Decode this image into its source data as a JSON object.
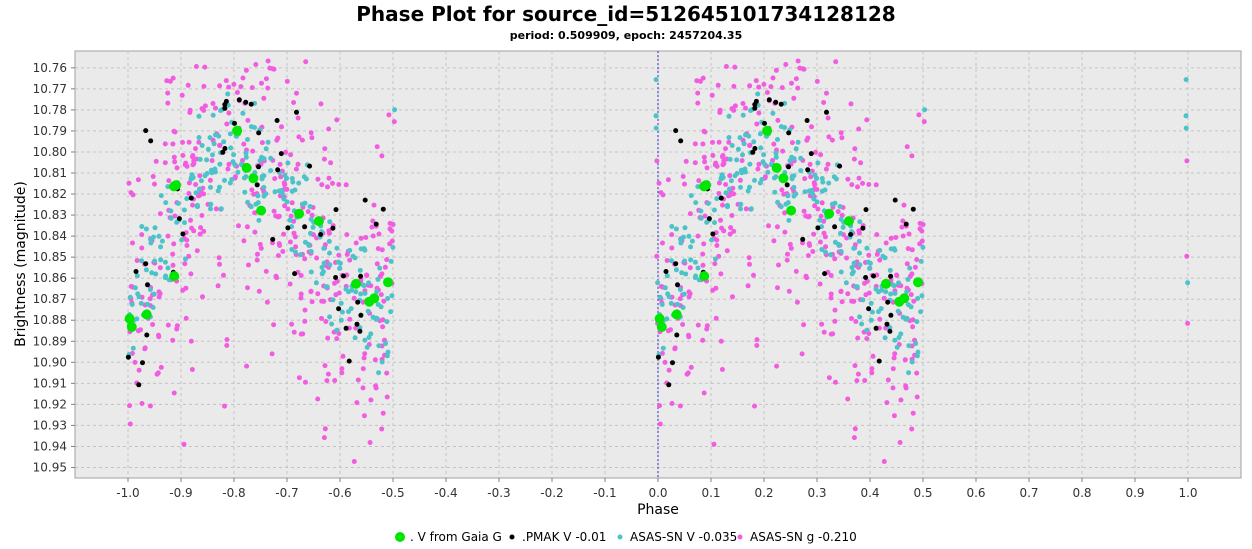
{
  "chart_data": {
    "type": "scatter",
    "title": "Phase Plot for source_id=512645101734128128",
    "subtitle": "period: 0.509909, epoch: 2457204.35",
    "xlabel": "Phase",
    "ylabel": "Brightness (magnitude)",
    "xlim": [
      -1.1,
      1.1
    ],
    "ylim": [
      10.955,
      10.752
    ],
    "y_inverted": true,
    "grid": true,
    "legend_position": "bottom-center",
    "x_ticks": [
      "-1.0",
      "-0.9",
      "-0.8",
      "-0.7",
      "-0.6",
      "-0.5",
      "-0.4",
      "-0.3",
      "-0.2",
      "-0.1",
      "0.0",
      "0.1",
      "0.2",
      "0.3",
      "0.4",
      "0.5",
      "0.6",
      "0.7",
      "0.8",
      "0.9",
      "1.0"
    ],
    "y_ticks": [
      "10.76",
      "10.77",
      "10.78",
      "10.79",
      "10.80",
      "10.81",
      "10.82",
      "10.83",
      "10.84",
      "10.85",
      "10.86",
      "10.87",
      "10.88",
      "10.89",
      "10.90",
      "10.91",
      "10.92",
      "10.93",
      "10.94",
      "10.95"
    ],
    "light_curve_model": {
      "min_phase": 0.0,
      "max_phase": 0.2,
      "min_mag": 10.885,
      "max_mag": 10.8,
      "secondary_min_phase": 0.5,
      "secondary_min_mag": 10.875
    },
    "series": [
      {
        "name": ". V from Gaia G",
        "color": "#00e600",
        "marker_radius": 5,
        "count": 40,
        "scatter": 0.012
      },
      {
        "name": ".PMAK V -0.01",
        "color": "#000000",
        "marker_radius": 2.5,
        "count": 95,
        "scatter": 0.022
      },
      {
        "name": "ASAS-SN V -0.035",
        "color": "#4cc3c8",
        "marker_radius": 2.5,
        "count": 520,
        "scatter": 0.014
      },
      {
        "name": "ASAS-SN g -0.210",
        "color": "#f25ce0",
        "marker_radius": 2.5,
        "count": 900,
        "scatter": 0.038
      }
    ]
  }
}
